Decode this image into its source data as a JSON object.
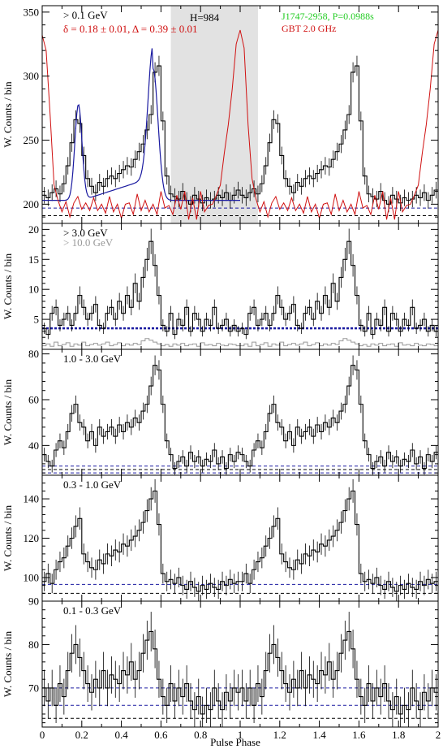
{
  "figure": {
    "xlabel": "Pulse Phase",
    "ylabel": "W. Counts / bin",
    "xticks": [
      "0",
      "0.2",
      "0.4",
      "0.6",
      "0.8",
      "1",
      "1.2",
      "1.4",
      "1.6",
      "1.8",
      "2"
    ]
  },
  "chart_data": [
    {
      "type": "line",
      "panel": "top",
      "label": "> 0.1 GeV",
      "fit_label": "δ = 0.18 ± 0.01, Δ = 0.39 ± 0.01",
      "h_label": "H=984",
      "source_label": "J1747-2958, P=0.0988s",
      "radio_label": "GBT 2.0 GHz",
      "ylim": [
        185,
        355
      ],
      "yticks": [
        200,
        250,
        300,
        350
      ],
      "offpulse_shading": [
        0.65,
        1.09
      ],
      "hlines": [
        {
          "y": 191,
          "color": "#000000"
        },
        {
          "y": 197,
          "color": "#1a1aa0"
        }
      ],
      "colors": {
        "gamma": "#000000",
        "fit": "#1a1aa0",
        "radio": "#d01010",
        "label_fit": "#d01010",
        "label_source": "#22cc22",
        "label_radio": "#d01010"
      },
      "phase": [
        0.0,
        0.02,
        0.04,
        0.06,
        0.08,
        0.1,
        0.12,
        0.14,
        0.16,
        0.18,
        0.2,
        0.22,
        0.24,
        0.26,
        0.28,
        0.3,
        0.32,
        0.34,
        0.36,
        0.38,
        0.4,
        0.42,
        0.44,
        0.46,
        0.48,
        0.5,
        0.52,
        0.54,
        0.56,
        0.58,
        0.6,
        0.62,
        0.64,
        0.66,
        0.68,
        0.7,
        0.72,
        0.74,
        0.76,
        0.78,
        0.8,
        0.82,
        0.84,
        0.86,
        0.88,
        0.9,
        0.92,
        0.94,
        0.96,
        0.98
      ],
      "values": [
        207,
        205,
        209,
        212,
        208,
        216,
        230,
        248,
        266,
        263,
        238,
        220,
        214,
        209,
        217,
        214,
        220,
        222,
        220,
        224,
        227,
        230,
        229,
        235,
        241,
        247,
        258,
        270,
        303,
        308,
        265,
        222,
        208,
        206,
        204,
        210,
        203,
        200,
        207,
        204,
        201,
        205,
        203,
        204,
        207,
        205,
        209,
        203,
        207,
        211
      ],
      "fit_curve": {
        "base": 203,
        "peaks": [
          {
            "center": 0.183,
            "amp": 75,
            "width": 0.018
          },
          {
            "center": 0.56,
            "amp": 103,
            "width": 0.025
          }
        ]
      },
      "radio_profile": [
        {
          "x": 0.0,
          "y": 332
        },
        {
          "x": 0.02,
          "y": 320
        },
        {
          "x": 0.04,
          "y": 270
        },
        {
          "x": 0.06,
          "y": 215
        },
        {
          "x": 0.08,
          "y": 203
        },
        {
          "x": 0.1,
          "y": 194
        },
        {
          "x": 0.12,
          "y": 202
        },
        {
          "x": 0.14,
          "y": 190
        },
        {
          "x": 0.16,
          "y": 201
        },
        {
          "x": 0.18,
          "y": 206
        },
        {
          "x": 0.2,
          "y": 196
        },
        {
          "x": 0.22,
          "y": 201
        },
        {
          "x": 0.24,
          "y": 195
        },
        {
          "x": 0.26,
          "y": 205
        },
        {
          "x": 0.28,
          "y": 195
        },
        {
          "x": 0.3,
          "y": 200
        },
        {
          "x": 0.32,
          "y": 193
        },
        {
          "x": 0.34,
          "y": 206
        },
        {
          "x": 0.36,
          "y": 194
        },
        {
          "x": 0.38,
          "y": 200
        },
        {
          "x": 0.4,
          "y": 189
        },
        {
          "x": 0.42,
          "y": 200
        },
        {
          "x": 0.44,
          "y": 201
        },
        {
          "x": 0.46,
          "y": 192
        },
        {
          "x": 0.48,
          "y": 208
        },
        {
          "x": 0.5,
          "y": 195
        },
        {
          "x": 0.52,
          "y": 203
        },
        {
          "x": 0.54,
          "y": 194
        },
        {
          "x": 0.56,
          "y": 200
        },
        {
          "x": 0.58,
          "y": 192
        },
        {
          "x": 0.6,
          "y": 210
        },
        {
          "x": 0.62,
          "y": 197
        },
        {
          "x": 0.64,
          "y": 199
        },
        {
          "x": 0.66,
          "y": 192
        },
        {
          "x": 0.68,
          "y": 207
        },
        {
          "x": 0.7,
          "y": 196
        },
        {
          "x": 0.72,
          "y": 210
        },
        {
          "x": 0.74,
          "y": 188
        },
        {
          "x": 0.76,
          "y": 205
        },
        {
          "x": 0.78,
          "y": 188
        },
        {
          "x": 0.8,
          "y": 210
        },
        {
          "x": 0.82,
          "y": 194
        },
        {
          "x": 0.84,
          "y": 199
        },
        {
          "x": 0.86,
          "y": 200
        },
        {
          "x": 0.88,
          "y": 207
        },
        {
          "x": 0.9,
          "y": 215
        },
        {
          "x": 0.92,
          "y": 240
        },
        {
          "x": 0.94,
          "y": 262
        },
        {
          "x": 0.96,
          "y": 290
        },
        {
          "x": 0.98,
          "y": 325
        },
        {
          "x": 1.0,
          "y": 336
        },
        {
          "x": 1.02,
          "y": 322
        },
        {
          "x": 1.04,
          "y": 262
        },
        {
          "x": 1.06,
          "y": 220
        },
        {
          "x": 1.08,
          "y": 204
        },
        {
          "x": 1.1,
          "y": 194
        },
        {
          "x": 1.12,
          "y": 202
        },
        {
          "x": 1.14,
          "y": 190
        },
        {
          "x": 1.16,
          "y": 201
        },
        {
          "x": 1.18,
          "y": 206
        },
        {
          "x": 1.2,
          "y": 196
        },
        {
          "x": 1.22,
          "y": 201
        },
        {
          "x": 1.24,
          "y": 195
        },
        {
          "x": 1.26,
          "y": 205
        },
        {
          "x": 1.28,
          "y": 195
        },
        {
          "x": 1.3,
          "y": 200
        },
        {
          "x": 1.32,
          "y": 193
        },
        {
          "x": 1.34,
          "y": 206
        },
        {
          "x": 1.36,
          "y": 194
        },
        {
          "x": 1.38,
          "y": 200
        },
        {
          "x": 1.4,
          "y": 189
        },
        {
          "x": 1.42,
          "y": 200
        },
        {
          "x": 1.44,
          "y": 201
        },
        {
          "x": 1.46,
          "y": 192
        },
        {
          "x": 1.48,
          "y": 208
        },
        {
          "x": 1.5,
          "y": 195
        },
        {
          "x": 1.52,
          "y": 203
        },
        {
          "x": 1.54,
          "y": 194
        },
        {
          "x": 1.56,
          "y": 200
        },
        {
          "x": 1.58,
          "y": 192
        },
        {
          "x": 1.6,
          "y": 210
        },
        {
          "x": 1.62,
          "y": 197
        },
        {
          "x": 1.64,
          "y": 199
        },
        {
          "x": 1.66,
          "y": 192
        },
        {
          "x": 1.68,
          "y": 207
        },
        {
          "x": 1.7,
          "y": 196
        },
        {
          "x": 1.72,
          "y": 210
        },
        {
          "x": 1.74,
          "y": 188
        },
        {
          "x": 1.76,
          "y": 205
        },
        {
          "x": 1.78,
          "y": 188
        },
        {
          "x": 1.8,
          "y": 210
        },
        {
          "x": 1.82,
          "y": 194
        },
        {
          "x": 1.84,
          "y": 199
        },
        {
          "x": 1.86,
          "y": 200
        },
        {
          "x": 1.88,
          "y": 207
        },
        {
          "x": 1.9,
          "y": 215
        },
        {
          "x": 1.92,
          "y": 240
        },
        {
          "x": 1.94,
          "y": 262
        },
        {
          "x": 1.96,
          "y": 290
        },
        {
          "x": 1.98,
          "y": 325
        },
        {
          "x": 2.0,
          "y": 336
        }
      ]
    },
    {
      "type": "line",
      "panel": "3gev",
      "label": "> 3.0 GeV",
      "label2": "> 10.0 GeV",
      "ylim": [
        0,
        21
      ],
      "yticks": [
        5,
        10,
        15,
        20
      ],
      "hlines": [
        {
          "y": 3.5,
          "color": "#1a1aa0",
          "dashed": false
        }
      ],
      "colors": {
        "gamma": "#000000",
        "secondary": "#999999",
        "label2": "#999999"
      },
      "phase": [
        0.0,
        0.02,
        0.04,
        0.06,
        0.08,
        0.1,
        0.12,
        0.14,
        0.16,
        0.18,
        0.2,
        0.22,
        0.24,
        0.26,
        0.28,
        0.3,
        0.32,
        0.34,
        0.36,
        0.38,
        0.4,
        0.42,
        0.44,
        0.46,
        0.48,
        0.5,
        0.52,
        0.54,
        0.56,
        0.58,
        0.6,
        0.62,
        0.64,
        0.66,
        0.68,
        0.7,
        0.72,
        0.74,
        0.76,
        0.78,
        0.8,
        0.82,
        0.84,
        0.86,
        0.88,
        0.9,
        0.92,
        0.94,
        0.96,
        0.98
      ],
      "values": [
        3.5,
        2.5,
        6,
        7,
        4,
        5,
        6,
        4,
        6,
        9,
        7,
        5,
        6,
        7.5,
        4,
        3.5,
        6,
        7,
        5,
        8,
        6,
        9,
        7,
        11,
        8,
        12,
        15,
        18,
        14,
        9,
        4,
        3,
        6,
        2.5,
        5,
        4,
        7,
        3,
        6,
        5,
        3,
        5,
        4,
        7,
        3.5,
        4,
        5,
        3,
        4,
        3
      ],
      "secondary": [
        0.6,
        0.9,
        0.5,
        1.2,
        0.6,
        0.8,
        1.1,
        0.5,
        0.9,
        0.7,
        1.2,
        0.6,
        0.8,
        1.0,
        0.7,
        0.9,
        1.2,
        0.6,
        0.8,
        1.1,
        0.6,
        0.9,
        0.7,
        1.0,
        0.8,
        1.4,
        1.8,
        1.5,
        1.2,
        0.9,
        0.6,
        0.8,
        0.5,
        0.9,
        0.7,
        1.0,
        0.6,
        0.8,
        0.9,
        0.5,
        1.1,
        0.7,
        0.8,
        0.6,
        1.0,
        0.7,
        0.6,
        0.9,
        0.8,
        0.6
      ]
    },
    {
      "type": "line",
      "panel": "1to3gev",
      "label": "1.0 - 3.0 GeV",
      "ylim": [
        27,
        82
      ],
      "yticks": [
        40,
        60,
        80
      ],
      "hlines": [
        {
          "y": 31,
          "color": "#1a1aa0"
        },
        {
          "y": 29.5,
          "color": "#000000"
        },
        {
          "y": 28,
          "color": "#1a1aa0"
        }
      ],
      "colors": {
        "gamma": "#000000"
      },
      "phase": [
        0.0,
        0.02,
        0.04,
        0.06,
        0.08,
        0.1,
        0.12,
        0.14,
        0.16,
        0.18,
        0.2,
        0.22,
        0.24,
        0.26,
        0.28,
        0.3,
        0.32,
        0.34,
        0.36,
        0.38,
        0.4,
        0.42,
        0.44,
        0.46,
        0.48,
        0.5,
        0.52,
        0.54,
        0.56,
        0.58,
        0.6,
        0.62,
        0.64,
        0.66,
        0.68,
        0.7,
        0.72,
        0.74,
        0.76,
        0.78,
        0.8,
        0.82,
        0.84,
        0.86,
        0.88,
        0.9,
        0.92,
        0.94,
        0.96,
        0.98
      ],
      "values": [
        36,
        33,
        31,
        38,
        42,
        39,
        46,
        54,
        58,
        50,
        48,
        42,
        46,
        40,
        48,
        44,
        46,
        48,
        44,
        49,
        46,
        50,
        48,
        52,
        50,
        55,
        58,
        66,
        75,
        73,
        58,
        42,
        36,
        30,
        33,
        35,
        31,
        37,
        33,
        35,
        31,
        34,
        33,
        38,
        32,
        35,
        30,
        36,
        33,
        37
      ]
    },
    {
      "type": "line",
      "panel": "0.3to1gev",
      "label": "0.3 - 1.0 GeV",
      "ylim": [
        88,
        152
      ],
      "yticks": [
        100,
        120,
        140
      ],
      "hlines": [
        {
          "y": 96.5,
          "color": "#1a1aa0"
        },
        {
          "y": 92,
          "color": "#000000"
        }
      ],
      "colors": {
        "gamma": "#000000"
      },
      "phase": [
        0.0,
        0.02,
        0.04,
        0.06,
        0.08,
        0.1,
        0.12,
        0.14,
        0.16,
        0.18,
        0.2,
        0.22,
        0.24,
        0.26,
        0.28,
        0.3,
        0.32,
        0.34,
        0.36,
        0.38,
        0.4,
        0.42,
        0.44,
        0.46,
        0.48,
        0.5,
        0.52,
        0.54,
        0.56,
        0.58,
        0.6,
        0.62,
        0.64,
        0.66,
        0.68,
        0.7,
        0.72,
        0.74,
        0.76,
        0.78,
        0.8,
        0.82,
        0.84,
        0.86,
        0.88,
        0.9,
        0.92,
        0.94,
        0.96,
        0.98
      ],
      "values": [
        98,
        102,
        97,
        104,
        108,
        110,
        116,
        120,
        126,
        130,
        112,
        108,
        105,
        104,
        109,
        107,
        112,
        111,
        114,
        113,
        117,
        116,
        119,
        121,
        124,
        128,
        134,
        140,
        144,
        127,
        102,
        98,
        99,
        97,
        100,
        96,
        94,
        98,
        95,
        93,
        96,
        94,
        97,
        95,
        94,
        98,
        96,
        99,
        97,
        98
      ]
    },
    {
      "type": "line",
      "panel": "0.1to0.3gev",
      "label": "0.1 - 0.3 GeV",
      "ylim": [
        61,
        90
      ],
      "yticks": [
        70,
        80,
        90
      ],
      "hlines": [
        {
          "y": 70,
          "color": "#1a1aa0"
        },
        {
          "y": 66,
          "color": "#1a1aa0"
        },
        {
          "y": 63,
          "color": "#000000"
        }
      ],
      "colors": {
        "gamma": "#000000"
      },
      "phase": [
        0.0,
        0.02,
        0.04,
        0.06,
        0.08,
        0.1,
        0.12,
        0.14,
        0.16,
        0.18,
        0.2,
        0.22,
        0.24,
        0.26,
        0.28,
        0.3,
        0.32,
        0.34,
        0.36,
        0.38,
        0.4,
        0.42,
        0.44,
        0.46,
        0.48,
        0.5,
        0.52,
        0.54,
        0.56,
        0.58,
        0.6,
        0.62,
        0.64,
        0.66,
        0.68,
        0.7,
        0.72,
        0.74,
        0.76,
        0.78,
        0.8,
        0.82,
        0.84,
        0.86,
        0.88,
        0.9,
        0.92,
        0.94,
        0.96,
        0.98
      ],
      "values": [
        70,
        67,
        70,
        66,
        71,
        68,
        74,
        78,
        80,
        77,
        74,
        71,
        69,
        72,
        70,
        74,
        70,
        73,
        72,
        71,
        74,
        73,
        76,
        72,
        74,
        78,
        81,
        83,
        79,
        72,
        68,
        66,
        71,
        67,
        70,
        68,
        71,
        67,
        65,
        68,
        64,
        66,
        65,
        70,
        67,
        65,
        69,
        67,
        70,
        69
      ]
    }
  ]
}
